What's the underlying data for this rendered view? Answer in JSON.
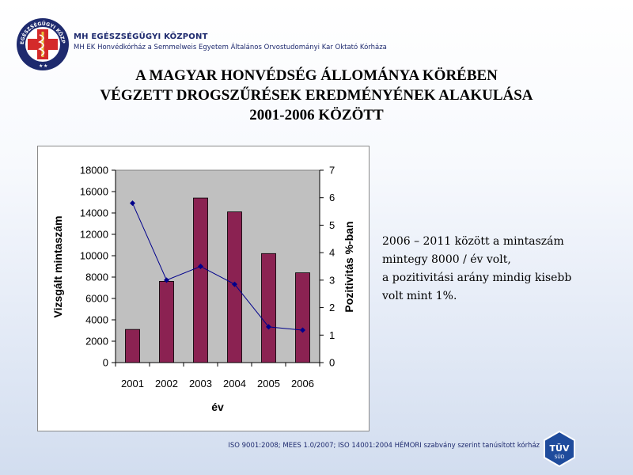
{
  "header": {
    "org_name": "MH EGÉSZSÉGÜGYI KÖZPONT",
    "org_subtitle": "MH EK Honvédkórház a Semmelweis Egyetem Általános Orvostudományi Kar Oktató Kórháza",
    "logo_text": "MH EGÉSZSÉGÜGYI KÖZPONT"
  },
  "title": {
    "line1": "A MAGYAR HONVÉDSÉG ÁLLOMÁNYA KÖRÉBEN",
    "line2": "VÉGZETT DROGSZŰRÉSEK  EREDMÉNYÉNEK ALAKULÁSA",
    "line3": "2001-2006 KÖZÖTT"
  },
  "note": {
    "line1": "2006 – 2011 között a mintaszám",
    "line2": "mintegy 8000 / év volt,",
    "line3": "a pozitivitási arány mindig kisebb",
    "line4": "volt mint 1%."
  },
  "footer": {
    "text": "ISO 9001:2008; MEES 1.0/2007; ISO 14001:2004 HÉMORI szabvány szerint tanúsított kórház",
    "badge_top": "TÜV",
    "badge_bottom": "SÜD"
  },
  "chart_data": {
    "type": "bar",
    "categories": [
      "2001",
      "2002",
      "2003",
      "2004",
      "2005",
      "2006"
    ],
    "series": [
      {
        "type": "bar",
        "axis": "left",
        "values": [
          3100,
          7600,
          15400,
          14100,
          10200,
          8400
        ],
        "color": "#8b2252"
      },
      {
        "type": "line",
        "axis": "right",
        "values": [
          5.8,
          3.0,
          3.5,
          2.85,
          1.3,
          1.18
        ],
        "color": "#00008b"
      }
    ],
    "xlabel": "év",
    "ylabel": "Vizsgált mintaszám",
    "y2label": "Pozitivitás %-ban",
    "ylim": [
      0,
      18000
    ],
    "yticks": [
      0,
      2000,
      4000,
      6000,
      8000,
      10000,
      12000,
      14000,
      16000,
      18000
    ],
    "y2lim": [
      0,
      7
    ],
    "y2ticks": [
      0,
      1,
      2,
      3,
      4,
      5,
      6,
      7
    ],
    "grid": false,
    "plot_background": "#c0c0c0",
    "legend": "none"
  }
}
